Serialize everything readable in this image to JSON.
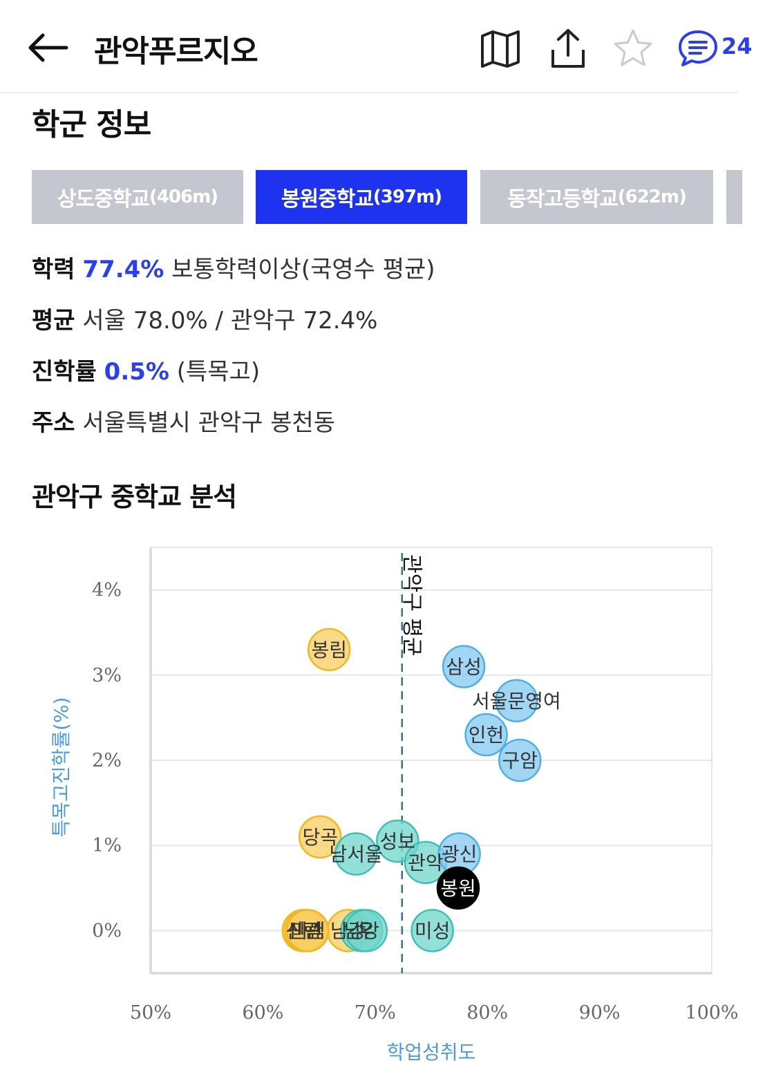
{
  "header": {
    "title": "관악푸르지오",
    "comment_count": "24",
    "icons": [
      "back-arrow-icon",
      "map-icon",
      "share-icon",
      "star-icon",
      "comment-icon"
    ],
    "accent_color": "#2a3ff5"
  },
  "school_section": {
    "title": "학군 정보",
    "tabs": [
      {
        "name": "상도중학교",
        "dist": "(406m)",
        "active": false
      },
      {
        "name": "봉원중학교",
        "dist": "(397m)",
        "active": true
      },
      {
        "name": "동작고등학교",
        "dist": "(622m)",
        "active": false
      }
    ],
    "rows": {
      "achievement": {
        "label": "학력",
        "value": "77.4%",
        "suffix": "보통학력이상(국영수 평균)"
      },
      "average": {
        "label": "평균",
        "text": "서울 78.0% / 관악구 72.4%"
      },
      "advancement": {
        "label": "진학률",
        "value": "0.5%",
        "suffix": "(특목고)"
      },
      "address": {
        "label": "주소",
        "text": "서울특별시 관악구 봉천동"
      }
    }
  },
  "analysis": {
    "title": "관악구 중학교 분석"
  },
  "chart_data": {
    "type": "scatter",
    "xlabel": "학업성취도",
    "ylabel": "특목고진학률(%)",
    "xlim": [
      50,
      100
    ],
    "ylim": [
      -0.5,
      4.5
    ],
    "x_ticks": [
      "50%",
      "60%",
      "70%",
      "80%",
      "90%",
      "100%"
    ],
    "y_ticks": [
      "0%",
      "1%",
      "2%",
      "3%",
      "4%"
    ],
    "reference_line": {
      "x": 72.4,
      "label": "관악구 평균"
    },
    "colors": {
      "yellow": "#f9d36b",
      "teal": "#7fdcd2",
      "blue": "#8ecdf2",
      "highlight": "#000000"
    },
    "points": [
      {
        "label": "봉림",
        "x": 65.9,
        "y": 3.3,
        "color": "yellow"
      },
      {
        "label": "삼성",
        "x": 77.9,
        "y": 3.1,
        "color": "blue"
      },
      {
        "label": "서울문영여",
        "x": 82.6,
        "y": 2.7,
        "color": "blue"
      },
      {
        "label": "인헌",
        "x": 79.9,
        "y": 2.3,
        "color": "blue"
      },
      {
        "label": "구암",
        "x": 82.9,
        "y": 2.0,
        "color": "blue"
      },
      {
        "label": "당곡",
        "x": 65.1,
        "y": 1.1,
        "color": "yellow"
      },
      {
        "label": "남서울",
        "x": 68.3,
        "y": 0.9,
        "color": "teal"
      },
      {
        "label": "성보",
        "x": 72.0,
        "y": 1.05,
        "color": "teal"
      },
      {
        "label": "관악",
        "x": 74.5,
        "y": 0.8,
        "color": "teal"
      },
      {
        "label": "광신",
        "x": 77.5,
        "y": 0.9,
        "color": "blue"
      },
      {
        "label": "봉원",
        "x": 77.4,
        "y": 0.5,
        "color": "highlight"
      },
      {
        "label": "미성",
        "x": 75.1,
        "y": 0.0,
        "color": "teal"
      },
      {
        "label": "남강",
        "x": 67.6,
        "y": 0.0,
        "color": "yellow"
      },
      {
        "label": "신림",
        "x": 63.6,
        "y": 0.0,
        "color": "yellow"
      },
      {
        "label": "신관",
        "x": 63.8,
        "y": 0.0,
        "color": "yellow"
      },
      {
        "label": "미림",
        "x": 64.0,
        "y": 0.0,
        "color": "yellow"
      },
      {
        "label": "남강",
        "x": 68.8,
        "y": 0.0,
        "color": "teal"
      },
      {
        "label": "우",
        "x": 69.2,
        "y": 0.0,
        "color": "teal"
      }
    ]
  }
}
